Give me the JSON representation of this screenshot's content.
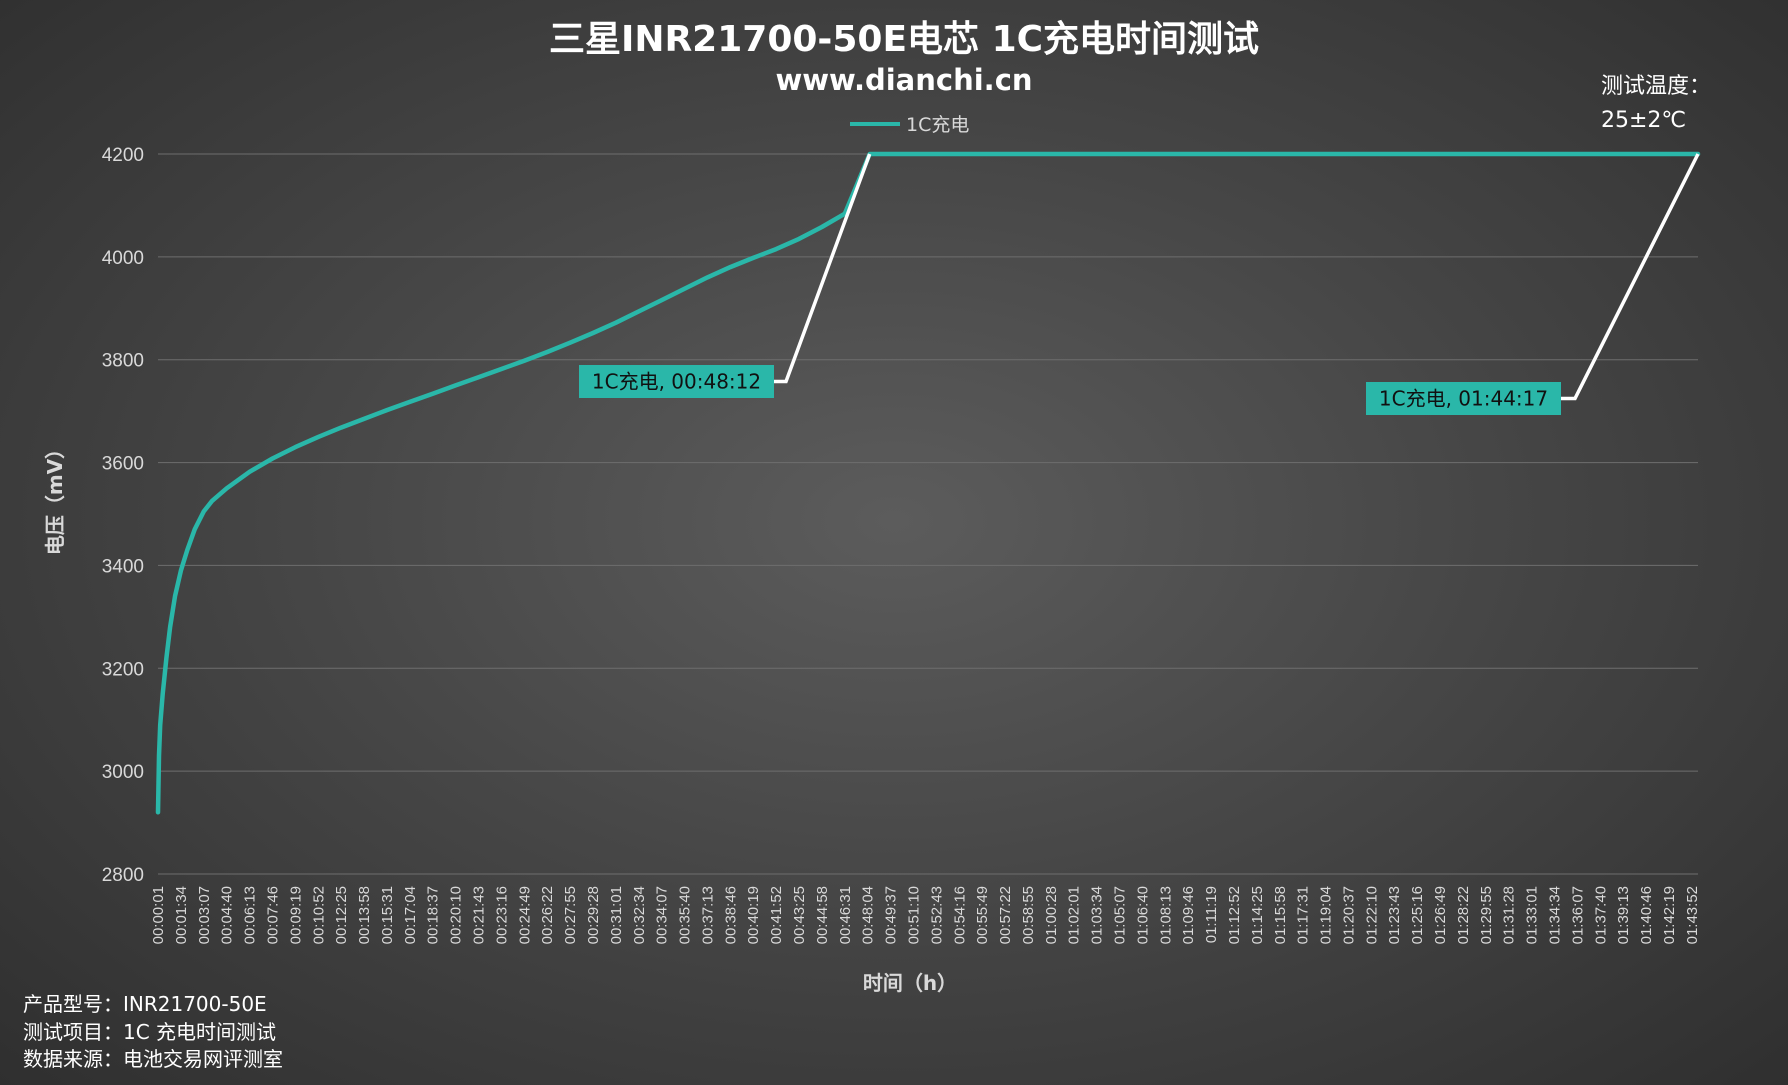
{
  "chart_data": {
    "type": "line",
    "title": "三星INR21700-50E电芯 1C充电时间测试",
    "subtitle": "www.dianchi.cn",
    "temperature_note": [
      "测试温度：",
      "25±2℃"
    ],
    "xlabel": "时间（h）",
    "ylabel": "电压（mV）",
    "ylim": [
      2800,
      4200
    ],
    "yticks": [
      2800,
      3000,
      3200,
      3400,
      3600,
      3800,
      4000,
      4200
    ],
    "xlim": [
      "00:00:01",
      "01:44:17"
    ],
    "xticks": [
      "00:00:01",
      "00:01:34",
      "00:03:07",
      "00:04:40",
      "00:06:13",
      "00:07:46",
      "00:09:19",
      "00:10:52",
      "00:12:25",
      "00:13:58",
      "00:15:31",
      "00:17:04",
      "00:18:37",
      "00:20:10",
      "00:21:43",
      "00:23:16",
      "00:24:49",
      "00:26:22",
      "00:27:55",
      "00:29:28",
      "00:31:01",
      "00:32:34",
      "00:34:07",
      "00:35:40",
      "00:37:13",
      "00:38:46",
      "00:40:19",
      "00:41:52",
      "00:43:25",
      "00:44:58",
      "00:46:31",
      "00:48:04",
      "00:49:37",
      "00:51:10",
      "00:52:43",
      "00:54:16",
      "00:55:49",
      "00:57:22",
      "00:58:55",
      "01:00:28",
      "01:02:01",
      "01:03:34",
      "01:05:07",
      "01:06:40",
      "01:08:13",
      "01:09:46",
      "01:11:19",
      "01:12:52",
      "01:14:25",
      "01:15:58",
      "01:17:31",
      "01:19:04",
      "01:20:37",
      "01:22:10",
      "01:23:43",
      "01:25:16",
      "01:26:49",
      "01:28:22",
      "01:29:55",
      "01:31:28",
      "01:33:01",
      "01:34:34",
      "01:36:07",
      "01:37:40",
      "01:39:13",
      "01:40:46",
      "01:42:19",
      "01:43:52"
    ],
    "grid": true,
    "legend_position": "top-center",
    "series": [
      {
        "name": "1C充电",
        "color": "#2ab7a9",
        "x": [
          "00:00:01",
          "00:00:05",
          "00:00:10",
          "00:00:20",
          "00:00:35",
          "00:00:50",
          "00:01:10",
          "00:01:34",
          "00:02:00",
          "00:02:30",
          "00:03:07",
          "00:03:40",
          "00:04:40",
          "00:06:13",
          "00:07:46",
          "00:09:19",
          "00:10:52",
          "00:12:25",
          "00:13:58",
          "00:15:31",
          "00:17:04",
          "00:18:37",
          "00:20:10",
          "00:21:43",
          "00:23:16",
          "00:24:49",
          "00:26:22",
          "00:27:55",
          "00:29:28",
          "00:31:01",
          "00:32:34",
          "00:34:07",
          "00:35:40",
          "00:37:13",
          "00:38:46",
          "00:40:19",
          "00:41:52",
          "00:43:25",
          "00:44:58",
          "00:46:31",
          "00:48:12",
          "00:49:37",
          "00:55:49",
          "01:02:01",
          "01:08:13",
          "01:14:25",
          "01:20:37",
          "01:26:49",
          "01:33:01",
          "01:39:13",
          "01:44:17"
        ],
        "values": [
          2920,
          3030,
          3090,
          3150,
          3220,
          3280,
          3340,
          3390,
          3430,
          3470,
          3505,
          3525,
          3550,
          3582,
          3608,
          3630,
          3650,
          3668,
          3685,
          3702,
          3718,
          3734,
          3750,
          3766,
          3782,
          3798,
          3815,
          3833,
          3852,
          3872,
          3894,
          3916,
          3938,
          3960,
          3980,
          3998,
          4015,
          4035,
          4058,
          4084,
          4200,
          4200,
          4200,
          4200,
          4200,
          4200,
          4200,
          4200,
          4200,
          4200,
          4200
        ]
      }
    ],
    "annotations": [
      {
        "text": "1C充电, 00:48:12",
        "x": "00:48:12",
        "y": 4200
      },
      {
        "text": "1C充电, 01:44:17",
        "x": "01:44:17",
        "y": 4200
      }
    ]
  },
  "footer": {
    "model": "产品型号：INR21700-50E",
    "test_item": "测试项目：1C 充电时间测试",
    "source": "数据来源：电池交易网评测室"
  }
}
